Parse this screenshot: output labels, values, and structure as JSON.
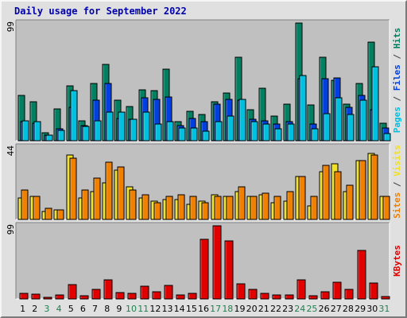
{
  "title": "Daily usage for September 2022",
  "colors": {
    "background": "#e0e0e0",
    "plot_bg": "#c0c0c0",
    "title": "#0000aa",
    "pages": "#00c0e0",
    "files": "#0040e0",
    "hits": "#008060",
    "visits": "#f0e020",
    "sites": "#f08000",
    "kbytes": "#e00000",
    "weekend_label": "#208050"
  },
  "chart_data": [
    {
      "type": "bar",
      "panel": "top",
      "ymax_label": "99",
      "legend_right": [
        {
          "text": "Pages",
          "color": "#00c0e0"
        },
        {
          "text": " / ",
          "color": "#404040"
        },
        {
          "text": "Files",
          "color": "#0040e0"
        },
        {
          "text": " / ",
          "color": "#404040"
        },
        {
          "text": "Hits",
          "color": "#008060"
        }
      ],
      "ylim": [
        0,
        99
      ],
      "series": [
        {
          "name": "Hits",
          "values": [
            38,
            33,
            7,
            27,
            46,
            17,
            48,
            64,
            34,
            29,
            43,
            42,
            60,
            16,
            25,
            22,
            33,
            40,
            70,
            26,
            44,
            21,
            31,
            99,
            30,
            70,
            51,
            31,
            48,
            83,
            15
          ]
        },
        {
          "name": "Files",
          "values": [
            16,
            15,
            5,
            10,
            28,
            13,
            34,
            48,
            19,
            18,
            36,
            35,
            37,
            13,
            19,
            16,
            31,
            35,
            34,
            18,
            17,
            14,
            16,
            52,
            14,
            52,
            53,
            28,
            38,
            26,
            11
          ]
        },
        {
          "name": "Pages",
          "values": [
            17,
            16,
            5,
            9,
            42,
            12,
            17,
            24,
            24,
            18,
            24,
            14,
            16,
            11,
            11,
            8,
            16,
            21,
            35,
            16,
            14,
            10,
            14,
            55,
            10,
            23,
            36,
            22,
            34,
            62,
            6
          ]
        }
      ]
    },
    {
      "type": "bar",
      "panel": "middle",
      "ymax_label": "44",
      "legend_right": [
        {
          "text": "Sites",
          "color": "#f08000"
        },
        {
          "text": " / ",
          "color": "#404040"
        },
        {
          "text": "Visits",
          "color": "#f0e020"
        }
      ],
      "ylim": [
        0,
        44
      ],
      "series": [
        {
          "name": "Visits",
          "values": [
            13,
            14,
            5,
            6,
            39,
            13,
            17,
            22,
            30,
            20,
            13,
            11,
            12,
            12,
            9,
            11,
            15,
            14,
            17,
            14,
            15,
            10,
            11,
            26,
            8,
            29,
            34,
            17,
            36,
            40,
            14
          ]
        },
        {
          "name": "Sites",
          "values": [
            18,
            14,
            7,
            6,
            37,
            18,
            25,
            35,
            32,
            18,
            15,
            10,
            14,
            15,
            14,
            10,
            14,
            14,
            20,
            14,
            16,
            14,
            17,
            26,
            14,
            33,
            29,
            21,
            36,
            39,
            14
          ]
        }
      ]
    },
    {
      "type": "bar",
      "panel": "bottom",
      "ymax_label": "99",
      "legend_right": [
        {
          "text": "KBytes",
          "color": "#e00000"
        }
      ],
      "ylim": [
        0,
        99
      ],
      "series": [
        {
          "name": "KBytes",
          "values": [
            7,
            6,
            2,
            5,
            19,
            4,
            13,
            26,
            9,
            8,
            17,
            10,
            18,
            5,
            7,
            81,
            99,
            79,
            20,
            13,
            8,
            5,
            5,
            26,
            4,
            10,
            23,
            13,
            66,
            21,
            3
          ]
        }
      ]
    }
  ],
  "x_labels": [
    "1",
    "2",
    "3",
    "4",
    "5",
    "6",
    "7",
    "8",
    "9",
    "10",
    "11",
    "12",
    "13",
    "14",
    "15",
    "16",
    "17",
    "18",
    "19",
    "20",
    "21",
    "22",
    "23",
    "24",
    "25",
    "26",
    "27",
    "28",
    "29",
    "30",
    "31"
  ],
  "weekend_days": [
    "3",
    "4",
    "10",
    "11",
    "17",
    "18",
    "24",
    "25",
    "31"
  ]
}
